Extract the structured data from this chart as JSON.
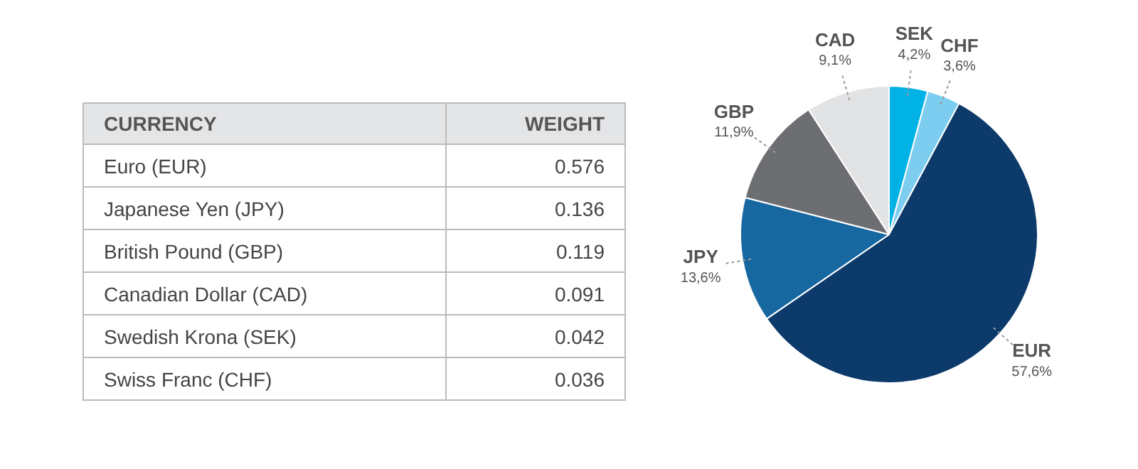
{
  "chart_data": [
    {
      "type": "other",
      "annotations": [
        "CURRENCY",
        "WEIGHT"
      ],
      "categories": [
        "Euro (EUR)",
        "Japanese Yen (JPY)",
        "British Pound (GBP)",
        "Canadian Dollar (CAD)",
        "Swedish Krona (SEK)",
        "Swiss Franc (CHF)"
      ],
      "values": [
        0.576,
        0.136,
        0.119,
        0.091,
        0.042,
        0.036
      ],
      "data_labels": true
    },
    {
      "type": "pie",
      "categories": [
        "SEK",
        "CHF",
        "EUR",
        "JPY",
        "GBP",
        "CAD"
      ],
      "values": [
        4.2,
        3.6,
        57.6,
        13.6,
        11.9,
        9.1
      ],
      "value_labels": [
        "4,2%",
        "3,6%",
        "57,6%",
        "13,6%",
        "11,9%",
        "9,1%"
      ],
      "colors": [
        "#00b2e5",
        "#7dcdf0",
        "#0c3a6b",
        "#1767a0",
        "#6c6e71",
        "#e2e3e5"
      ],
      "legend": false
    }
  ]
}
